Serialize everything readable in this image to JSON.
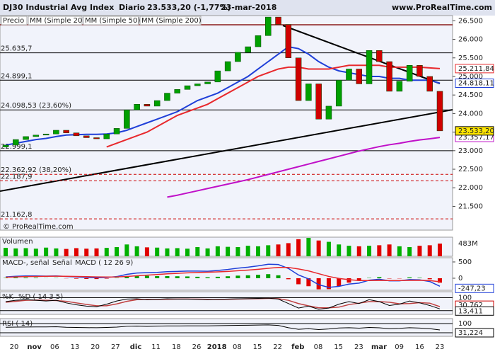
{
  "header": {
    "title": "DJ30 Industrial Avg Index",
    "period": "Diario",
    "quote": "23.533,20 (-1,77%)",
    "date": "23-mar-2018",
    "site": "www.ProRealTime.com",
    "watermark": "© ProRealTime.com"
  },
  "chart_data": {
    "type": "candlestick",
    "legend": [
      "Precio",
      "MM (Simple 20)",
      "MM (Simple 50)",
      "MM (Simple 200)"
    ],
    "xticks": [
      "20",
      "nov",
      "06",
      "13",
      "20",
      "27",
      "dic",
      "11",
      "18",
      "26",
      "2018",
      "08",
      "15",
      "22",
      "feb",
      "08",
      "15",
      "23",
      "mar",
      "09",
      "16",
      "23"
    ],
    "ylim": [
      20860,
      26640
    ],
    "yticks": [
      {
        "value": 26500,
        "label": "26.500"
      },
      {
        "value": 26000,
        "label": "26.000"
      },
      {
        "value": 25500,
        "label": "25.500"
      },
      {
        "value": 25000,
        "label": "25.000"
      },
      {
        "value": 24500,
        "label": "24.500"
      },
      {
        "value": 24000,
        "label": "24.000"
      },
      {
        "value": 23500,
        "label": "23.500"
      },
      {
        "value": 23000,
        "label": "23.000"
      },
      {
        "value": 22500,
        "label": "22.500"
      },
      {
        "value": 22000,
        "label": "22.000"
      },
      {
        "value": 21500,
        "label": "21.500"
      }
    ],
    "levels": [
      {
        "value": 25635.7,
        "label": "25.635,7"
      },
      {
        "value": 24899.1,
        "label": "24.899,1"
      },
      {
        "value": 24098.53,
        "label": "24.098,53 (23,60%)"
      },
      {
        "value": 22999.1,
        "label": "22.999,1"
      },
      {
        "value": 22362.92,
        "label": "22.362,92 (38,20%)"
      },
      {
        "value": 22187.9,
        "label": "22.187,9"
      },
      {
        "value": 21162.8,
        "label": "21.162,8"
      }
    ],
    "open": [
      23100,
      23150,
      23300,
      23380,
      23420,
      23450,
      23550,
      23480,
      23400,
      23350,
      23320,
      23450,
      23600,
      24100,
      24250,
      24200,
      24350,
      24550,
      24650,
      24750,
      24800,
      24850,
      25150,
      25400,
      25650,
      25800,
      26100,
      26600,
      26400,
      25500,
      24350,
      24800,
      23850,
      24200,
      24900,
      25200,
      24800,
      25700,
      25400,
      24600,
      24870,
      25300,
      25000,
      24600
    ],
    "close": [
      23150,
      23300,
      23380,
      23420,
      23450,
      23550,
      23480,
      23400,
      23350,
      23320,
      23450,
      23600,
      24100,
      24250,
      24200,
      24350,
      24550,
      24650,
      24750,
      24800,
      24850,
      25150,
      25400,
      25650,
      25800,
      26100,
      26600,
      26400,
      25500,
      24350,
      24800,
      23850,
      24200,
      24900,
      25200,
      24800,
      25700,
      25400,
      24600,
      24870,
      25300,
      25000,
      24600,
      23533.2
    ],
    "close_label": "23.533,20",
    "series": [
      {
        "name": "MM (Simple 20)",
        "color": "#1f3fd8",
        "last_label": "24.818,11",
        "values": [
          23150,
          23200,
          23250,
          23300,
          23330,
          23380,
          23420,
          23430,
          23440,
          23440,
          23450,
          23480,
          23550,
          23650,
          23750,
          23850,
          23950,
          24050,
          24200,
          24350,
          24450,
          24550,
          24700,
          24850,
          25000,
          25200,
          25400,
          25600,
          25800,
          25750,
          25600,
          25400,
          25250,
          25150,
          25100,
          25050,
          25000,
          25000,
          24950,
          24950,
          24900,
          24900,
          24900,
          24818.11
        ]
      },
      {
        "name": "MM (Simple 50)",
        "color": "#e8282c",
        "last_label": "25.211,84",
        "values": [
          null,
          null,
          null,
          null,
          null,
          null,
          null,
          null,
          null,
          null,
          23100,
          23200,
          23300,
          23400,
          23500,
          23650,
          23800,
          23950,
          24050,
          24150,
          24250,
          24400,
          24550,
          24700,
          24850,
          25000,
          25100,
          25200,
          25250,
          25250,
          25200,
          25200,
          25200,
          25250,
          25300,
          25300,
          25300,
          25300,
          25250,
          25250,
          25250,
          25250,
          25230,
          25211.84
        ]
      },
      {
        "name": "MM (Simple 200)",
        "color": "#c010c8",
        "last_label": "23.357,17",
        "values": [
          null,
          null,
          null,
          null,
          null,
          null,
          null,
          null,
          null,
          null,
          null,
          null,
          null,
          null,
          null,
          null,
          21750,
          21800,
          21860,
          21920,
          21980,
          22040,
          22100,
          22160,
          22220,
          22290,
          22360,
          22430,
          22500,
          22570,
          22640,
          22710,
          22780,
          22850,
          22920,
          22990,
          23050,
          23110,
          23160,
          23200,
          23250,
          23290,
          23320,
          23357.17
        ]
      }
    ],
    "volume": {
      "title": "Volumen",
      "ylim": [
        0,
        700
      ],
      "last_label": "483M",
      "values": [
        320,
        300,
        310,
        290,
        330,
        300,
        280,
        310,
        290,
        300,
        320,
        350,
        450,
        380,
        340,
        330,
        300,
        310,
        290,
        350,
        300,
        380,
        360,
        350,
        400,
        380,
        420,
        450,
        500,
        650,
        700,
        600,
        550,
        450,
        400,
        380,
        400,
        420,
        450,
        380,
        350,
        400,
        420,
        483
      ]
    },
    "macd": {
      "title": "MACD-, señal",
      "signal_title": "Señal",
      "params": "MACD ( 12 26 9)",
      "ylim": [
        -370,
        630
      ],
      "yticks": [
        500,
        0
      ],
      "last_label": "-247,23",
      "values": [
        40,
        60,
        70,
        70,
        65,
        70,
        55,
        40,
        25,
        15,
        25,
        50,
        120,
        160,
        170,
        180,
        200,
        210,
        220,
        220,
        215,
        240,
        270,
        310,
        340,
        380,
        430,
        420,
        300,
        100,
        -20,
        -200,
        -280,
        -250,
        -180,
        -150,
        -60,
        -30,
        -80,
        -80,
        -40,
        -50,
        -100,
        -247.23
      ],
      "signal": [
        30,
        40,
        50,
        55,
        60,
        62,
        60,
        55,
        48,
        40,
        37,
        40,
        55,
        75,
        95,
        115,
        135,
        150,
        165,
        175,
        185,
        195,
        210,
        230,
        250,
        275,
        305,
        330,
        330,
        285,
        225,
        140,
        55,
        -5,
        -45,
        -70,
        -70,
        -65,
        -70,
        -72,
        -66,
        -63,
        -70,
        -110
      ],
      "histogram": [
        10,
        20,
        20,
        15,
        5,
        8,
        -5,
        -15,
        -23,
        -25,
        -12,
        10,
        65,
        85,
        75,
        65,
        65,
        60,
        55,
        45,
        30,
        45,
        60,
        80,
        90,
        105,
        125,
        90,
        -30,
        -185,
        -245,
        -340,
        -335,
        -245,
        -135,
        -80,
        10,
        35,
        -10,
        -8,
        26,
        13,
        -30,
        -137
      ]
    },
    "stoch": {
      "title": "%K",
      "d_title": "%D ( 14 3 5)",
      "ylim": [
        -29,
        147
      ],
      "yticks": [
        100,
        0
      ],
      "k_label": "13,411",
      "d_label": "30,762",
      "k": [
        70,
        80,
        85,
        80,
        75,
        80,
        60,
        45,
        35,
        30,
        50,
        75,
        90,
        92,
        85,
        88,
        92,
        90,
        90,
        88,
        85,
        88,
        90,
        92,
        93,
        95,
        97,
        90,
        55,
        20,
        35,
        10,
        20,
        50,
        70,
        55,
        85,
        70,
        40,
        50,
        75,
        60,
        40,
        13.411
      ],
      "d": [
        65,
        72,
        80,
        82,
        80,
        78,
        72,
        60,
        48,
        38,
        38,
        52,
        72,
        85,
        88,
        87,
        88,
        90,
        90,
        89,
        88,
        87,
        88,
        90,
        92,
        93,
        95,
        93,
        80,
        55,
        37,
        22,
        22,
        27,
        47,
        58,
        70,
        70,
        65,
        53,
        55,
        62,
        58,
        30.762
      ]
    },
    "rsi": {
      "title": "RSI ( 14)",
      "ylim": [
        -38,
        154
      ],
      "yticks": [
        100,
        0
      ],
      "last_label": "31,224",
      "values": [
        60,
        62,
        63,
        64,
        64,
        66,
        60,
        58,
        56,
        55,
        58,
        62,
        70,
        72,
        70,
        72,
        74,
        74,
        75,
        75,
        75,
        77,
        79,
        81,
        82,
        84,
        86,
        80,
        55,
        38,
        45,
        35,
        42,
        52,
        55,
        50,
        58,
        54,
        45,
        48,
        55,
        51,
        45,
        31.224
      ]
    }
  }
}
